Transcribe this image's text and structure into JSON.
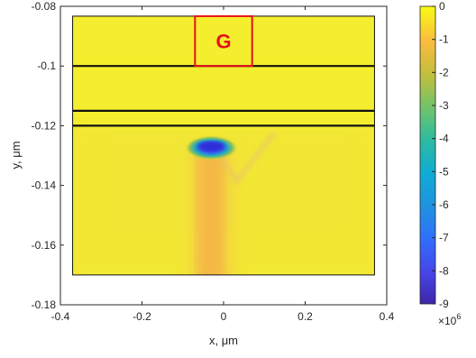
{
  "chart_data": {
    "type": "heatmap",
    "title": "",
    "xlabel": "x, μm",
    "ylabel": "y, μm",
    "xlim": [
      -0.4,
      0.4
    ],
    "ylim": [
      -0.18,
      -0.08
    ],
    "xticks": [
      -0.4,
      -0.2,
      0,
      0.2,
      0.4
    ],
    "xtick_labels": [
      "-0.4",
      "-0.2",
      "0",
      "0.2",
      "0.4"
    ],
    "yticks": [
      -0.08,
      -0.1,
      -0.12,
      -0.14,
      -0.16,
      -0.18
    ],
    "ytick_labels": [
      "-0.08",
      "-0.1",
      "-0.12",
      "-0.14",
      "-0.16",
      "-0.18"
    ],
    "field_extent": {
      "x": [
        -0.37,
        0.37
      ],
      "y": [
        -0.17,
        -0.0833
      ]
    },
    "layer_boundaries_y": [
      -0.1,
      -0.115,
      -0.12
    ],
    "gate_marker": {
      "label": "G",
      "x": [
        -0.07,
        0.07
      ],
      "y": [
        -0.1,
        -0.0833
      ],
      "color": "#e8111a"
    },
    "hotspot": {
      "x": -0.03,
      "y": -0.1265,
      "value": -9
    },
    "colorbar": {
      "range": [
        -9,
        0
      ],
      "ticks": [
        0,
        -1,
        -2,
        -3,
        -4,
        -5,
        -6,
        -7,
        -8,
        -9
      ],
      "tick_labels": [
        "0",
        "-1",
        "-2",
        "-3",
        "-4",
        "-5",
        "-6",
        "-7",
        "-8",
        "-9"
      ],
      "exponent_base": "×10",
      "exponent_power": "6",
      "colormap": "parula"
    }
  }
}
